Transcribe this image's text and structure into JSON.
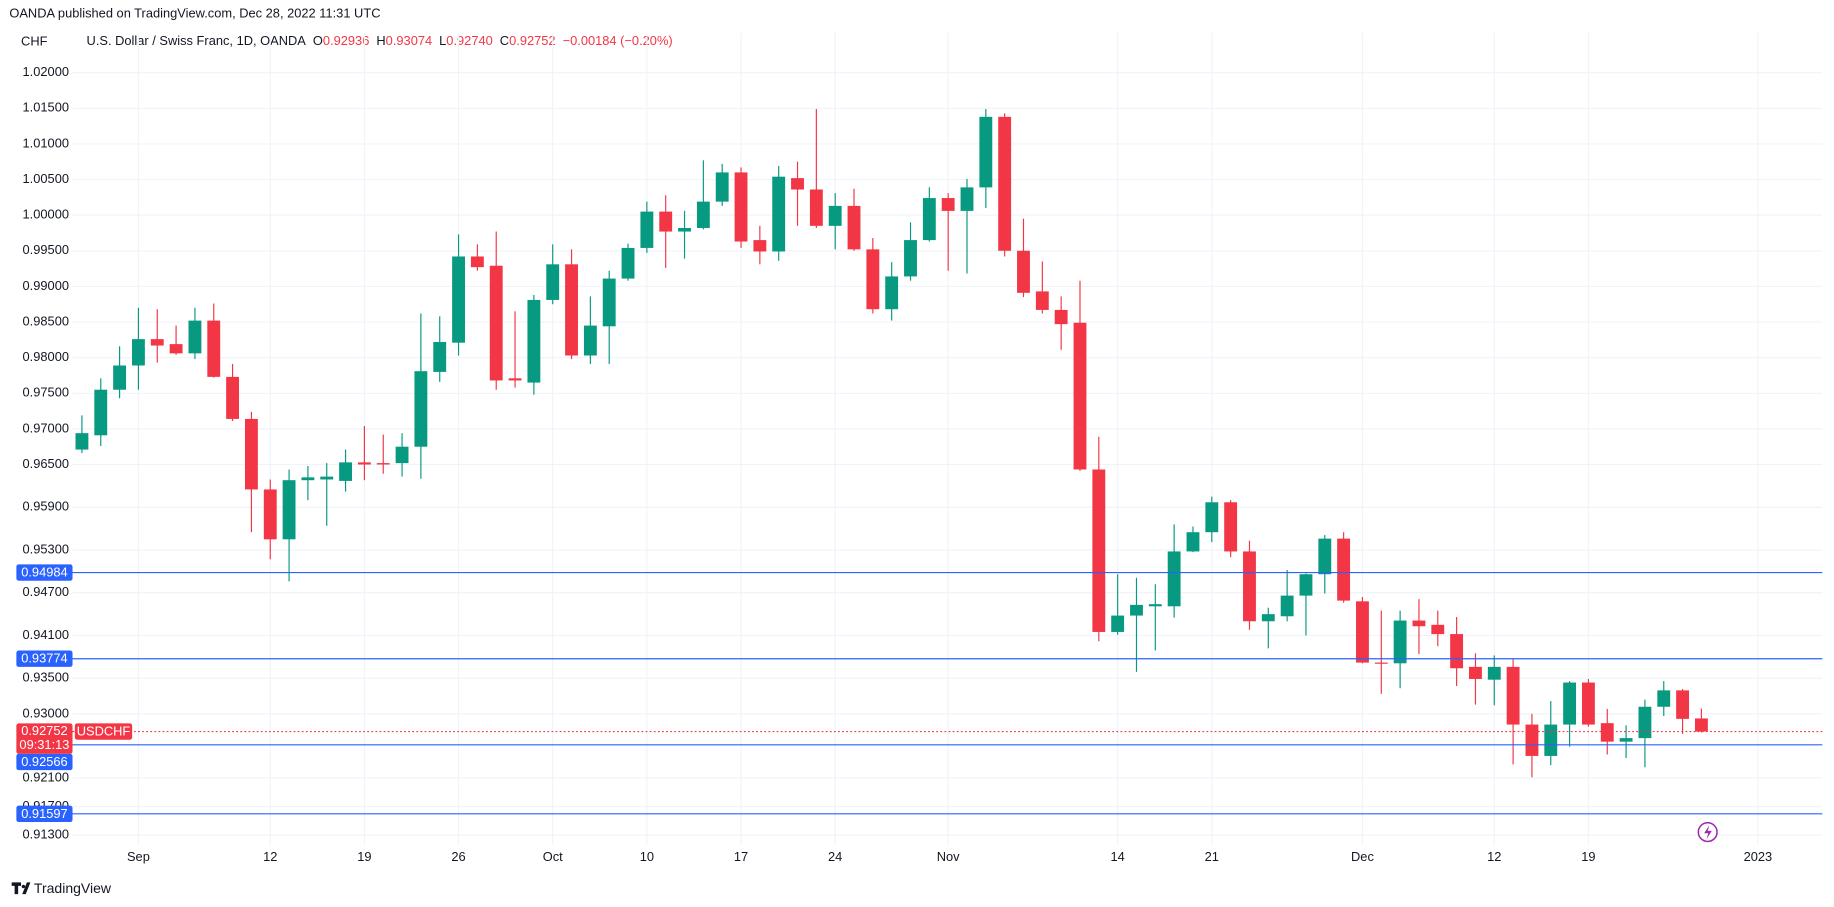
{
  "header": {
    "publisher": "OANDA published on TradingView.com, Dec 28, 2022 11:31 UTC"
  },
  "chart_data": {
    "type": "candlestick",
    "currency": "CHF",
    "title": "U.S. Dollar / Swiss Franc, 1D, OANDA",
    "ohlc_legend": [
      {
        "key": "O",
        "value": "0.92936"
      },
      {
        "key": "H",
        "value": "0.93074"
      },
      {
        "key": "L",
        "value": "0.92740"
      },
      {
        "key": "C",
        "value": "0.92752"
      }
    ],
    "change": "−0.00184 (−0.20%)",
    "categories": [
      null,
      null,
      null,
      "Sep",
      null,
      null,
      null,
      null,
      null,
      null,
      "12",
      null,
      null,
      null,
      null,
      "19",
      null,
      null,
      null,
      null,
      "26",
      null,
      null,
      null,
      null,
      "Oct",
      null,
      null,
      null,
      null,
      "10",
      null,
      null,
      null,
      null,
      "17",
      null,
      null,
      null,
      null,
      "24",
      null,
      null,
      null,
      null,
      null,
      "Nov",
      null,
      null,
      null,
      null,
      null,
      null,
      null,
      null,
      "14",
      null,
      null,
      null,
      null,
      "21",
      null,
      null,
      null,
      null,
      null,
      null,
      null,
      "Dec",
      null,
      null,
      null,
      null,
      null,
      null,
      "12",
      null,
      null,
      null,
      null,
      "19",
      null,
      null,
      null,
      null,
      null,
      null,
      null,
      null,
      "2023"
    ],
    "open": [
      0.9671,
      0.9691,
      0.9755,
      0.9789,
      0.9826,
      0.9819,
      0.9806,
      0.9852,
      0.9773,
      0.9714,
      0.9615,
      0.9545,
      0.9628,
      0.9629,
      0.9627,
      0.9653,
      0.9652,
      0.9652,
      0.9675,
      0.978,
      0.9821,
      0.9942,
      0.9929,
      0.9771,
      0.9765,
      0.9881,
      0.9931,
      0.9803,
      0.9844,
      0.9911,
      0.9954,
      1.0005,
      0.9977,
      0.9982,
      1.0019,
      1.006,
      0.9965,
      0.9949,
      1.0052,
      1.0036,
      0.9985,
      1.0013,
      0.9952,
      0.9868,
      0.9914,
      0.9965,
      1.0024,
      1.0006,
      1.0039,
      1.0138,
      0.995,
      0.9893,
      0.9867,
      0.9849,
      0.9643,
      0.9415,
      0.9438,
      0.9451,
      0.9451,
      0.9528,
      0.9555,
      0.9597,
      0.9528,
      0.943,
      0.9437,
      0.9466,
      0.9496,
      0.9546,
      0.9458,
      0.9372,
      0.9371,
      0.9431,
      0.9425,
      0.9412,
      0.9366,
      0.9348,
      0.9366,
      0.9285,
      0.9241,
      0.9285,
      0.9344,
      0.9287,
      0.9261,
      0.9266,
      0.931,
      0.9333,
      0.92936,
      null,
      null,
      null
    ],
    "high": [
      0.9719,
      0.9771,
      0.9816,
      0.987,
      0.9868,
      0.9845,
      0.987,
      0.9876,
      0.9791,
      0.9724,
      0.9629,
      0.9643,
      0.9648,
      0.9652,
      0.9671,
      0.9704,
      0.9692,
      0.9694,
      0.9862,
      0.9858,
      0.9973,
      0.9959,
      0.9977,
      0.9865,
      0.9888,
      0.9959,
      0.9952,
      0.9886,
      0.9922,
      0.996,
      1.0019,
      1.0028,
      1.0006,
      1.0077,
      1.0072,
      1.0067,
      0.9985,
      1.0069,
      1.0075,
      1.0149,
      1.0031,
      1.0037,
      0.9968,
      0.9934,
      0.999,
      1.0039,
      1.0031,
      1.0051,
      1.0149,
      1.0143,
      0.9995,
      0.9935,
      0.9886,
      0.9908,
      0.9689,
      0.9496,
      0.9491,
      0.9482,
      0.9566,
      0.9563,
      0.9605,
      0.96,
      0.9543,
      0.9449,
      0.9502,
      0.9497,
      0.9551,
      0.9555,
      0.9464,
      0.9445,
      0.9445,
      0.9461,
      0.9445,
      0.9436,
      0.9385,
      0.9382,
      0.9377,
      0.93,
      0.9318,
      0.9346,
      0.9349,
      0.9307,
      0.9284,
      0.932,
      0.9346,
      0.9335,
      0.93074,
      null,
      null,
      null
    ],
    "low": [
      0.9666,
      0.9676,
      0.9743,
      0.9755,
      0.9793,
      0.9804,
      0.9798,
      0.9772,
      0.9711,
      0.9555,
      0.9517,
      0.9486,
      0.96,
      0.9564,
      0.9612,
      0.9628,
      0.9637,
      0.9633,
      0.963,
      0.9766,
      0.9803,
      0.9922,
      0.9755,
      0.9758,
      0.9748,
      0.9875,
      0.9798,
      0.9791,
      0.9791,
      0.9908,
      0.9947,
      0.9926,
      0.9939,
      0.998,
      1.0013,
      0.9954,
      0.9931,
      0.9936,
      0.9985,
      0.9982,
      0.9952,
      0.995,
      0.9862,
      0.9852,
      0.9908,
      0.9963,
      0.9922,
      0.9918,
      1.001,
      0.9942,
      0.9885,
      0.9862,
      0.9811,
      0.9641,
      0.9402,
      0.9411,
      0.9359,
      0.9389,
      0.9435,
      0.9527,
      0.9541,
      0.952,
      0.9418,
      0.9392,
      0.943,
      0.941,
      0.9469,
      0.9456,
      0.9371,
      0.9328,
      0.9336,
      0.9384,
      0.9395,
      0.9339,
      0.9313,
      0.9312,
      0.9229,
      0.9211,
      0.9228,
      0.9254,
      0.9282,
      0.9243,
      0.9238,
      0.9225,
      0.9297,
      0.9272,
      0.9274,
      null,
      null,
      null
    ],
    "close": [
      0.9694,
      0.9755,
      0.9789,
      0.9826,
      0.9817,
      0.9806,
      0.9852,
      0.9773,
      0.9714,
      0.9615,
      0.9545,
      0.9628,
      0.9632,
      0.9633,
      0.9653,
      0.965,
      0.965,
      0.9675,
      0.9781,
      0.9822,
      0.9942,
      0.9927,
      0.9768,
      0.9768,
      0.9881,
      0.9931,
      0.9803,
      0.9845,
      0.9911,
      0.9954,
      1.0005,
      0.9977,
      0.9982,
      1.0019,
      1.006,
      0.9963,
      0.9949,
      1.0054,
      1.0036,
      0.9985,
      1.0013,
      0.9952,
      0.9868,
      0.9914,
      0.9965,
      1.0024,
      1.0006,
      1.0039,
      1.0138,
      0.995,
      0.9891,
      0.9867,
      0.9847,
      0.9643,
      0.9415,
      0.9438,
      0.9453,
      0.9454,
      0.9528,
      0.9555,
      0.9597,
      0.9528,
      0.943,
      0.944,
      0.9466,
      0.9496,
      0.9546,
      0.9459,
      0.9372,
      0.9371,
      0.9431,
      0.9423,
      0.9412,
      0.9364,
      0.9349,
      0.9366,
      0.9285,
      0.9241,
      0.9285,
      0.9344,
      0.9285,
      0.9261,
      0.9266,
      0.931,
      0.9333,
      0.9293,
      0.92752,
      null,
      null,
      null
    ],
    "up_color": "#089981",
    "down_color": "#f23645",
    "ylim": [
      0.9116,
      1.0256
    ],
    "yticks": [
      {
        "value": 1.02,
        "label": "1.02000"
      },
      {
        "value": 1.015,
        "label": "1.01500"
      },
      {
        "value": 1.01,
        "label": "1.01000"
      },
      {
        "value": 1.005,
        "label": "1.00500"
      },
      {
        "value": 1.0,
        "label": "1.00000"
      },
      {
        "value": 0.995,
        "label": "0.99500"
      },
      {
        "value": 0.99,
        "label": "0.99000"
      },
      {
        "value": 0.985,
        "label": "0.98500"
      },
      {
        "value": 0.98,
        "label": "0.98000"
      },
      {
        "value": 0.975,
        "label": "0.97500"
      },
      {
        "value": 0.97,
        "label": "0.97000"
      },
      {
        "value": 0.965,
        "label": "0.96500"
      },
      {
        "value": 0.959,
        "label": "0.95900"
      },
      {
        "value": 0.953,
        "label": "0.95300"
      },
      {
        "value": 0.947,
        "label": "0.94700"
      },
      {
        "value": 0.941,
        "label": "0.94100"
      },
      {
        "value": 0.935,
        "label": "0.93500"
      },
      {
        "value": 0.93,
        "label": "0.93000"
      },
      {
        "value": 0.921,
        "label": "0.92100"
      },
      {
        "value": 0.917,
        "label": "0.91700"
      },
      {
        "value": 0.913,
        "label": "0.91300"
      }
    ],
    "grid": true,
    "levels": [
      {
        "value": 0.94984,
        "color": "#2962ff"
      },
      {
        "value": 0.93774,
        "color": "#2962ff"
      },
      {
        "value": 0.92566,
        "color": "#2962ff"
      },
      {
        "value": 0.91597,
        "color": "#2962ff"
      }
    ],
    "last_price": {
      "value": 0.92752,
      "symbol": "USDCHF",
      "countdown": "09:31:13",
      "color": "#f23645"
    }
  },
  "footer": {
    "brand": "TradingView"
  }
}
